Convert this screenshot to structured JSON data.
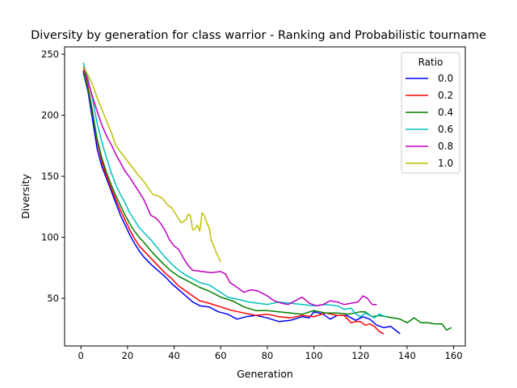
{
  "chart_data": {
    "type": "line",
    "title": "Diversity by generation for class warrior - Ranking and Probabilistic tourname",
    "xlabel": "Generation",
    "ylabel": "Diversity",
    "xlim": [
      -7,
      165
    ],
    "ylim": [
      11,
      256
    ],
    "xticks": [
      0,
      20,
      40,
      60,
      80,
      100,
      120,
      140,
      160
    ],
    "yticks": [
      50,
      100,
      150,
      200,
      250
    ],
    "grid": false,
    "legend": {
      "title": "Ratio",
      "placement": "top-right"
    },
    "series": [
      {
        "name": "0.0",
        "color": "#0000ff",
        "points": [
          [
            1,
            235
          ],
          [
            3,
            220
          ],
          [
            5,
            196
          ],
          [
            7,
            172
          ],
          [
            9,
            158
          ],
          [
            11,
            148
          ],
          [
            13,
            138
          ],
          [
            15,
            128
          ],
          [
            17,
            118
          ],
          [
            19,
            110
          ],
          [
            21,
            102
          ],
          [
            23,
            95
          ],
          [
            25,
            89
          ],
          [
            27,
            84
          ],
          [
            30,
            78
          ],
          [
            33,
            73
          ],
          [
            36,
            68
          ],
          [
            39,
            62
          ],
          [
            42,
            57
          ],
          [
            45,
            52
          ],
          [
            48,
            47
          ],
          [
            51,
            44
          ],
          [
            55,
            43
          ],
          [
            59,
            39
          ],
          [
            63,
            37
          ],
          [
            67,
            33
          ],
          [
            71,
            35
          ],
          [
            75,
            36
          ],
          [
            80,
            34
          ],
          [
            85,
            31
          ],
          [
            90,
            32
          ],
          [
            95,
            35
          ],
          [
            98,
            34
          ],
          [
            100,
            39
          ],
          [
            104,
            37
          ],
          [
            107,
            33
          ],
          [
            110,
            36
          ],
          [
            114,
            36
          ],
          [
            118,
            32
          ],
          [
            121,
            35
          ],
          [
            124,
            33
          ],
          [
            127,
            28
          ],
          [
            130,
            26
          ],
          [
            133,
            27
          ],
          [
            135,
            24
          ],
          [
            137,
            21
          ]
        ]
      },
      {
        "name": "0.2",
        "color": "#ff0000",
        "points": [
          [
            1,
            237
          ],
          [
            3,
            224
          ],
          [
            5,
            203
          ],
          [
            7,
            178
          ],
          [
            9,
            162
          ],
          [
            11,
            150
          ],
          [
            13,
            140
          ],
          [
            15,
            131
          ],
          [
            17,
            122
          ],
          [
            19,
            114
          ],
          [
            21,
            106
          ],
          [
            23,
            99
          ],
          [
            25,
            93
          ],
          [
            27,
            89
          ],
          [
            30,
            83
          ],
          [
            33,
            77
          ],
          [
            36,
            71
          ],
          [
            39,
            66
          ],
          [
            42,
            60
          ],
          [
            45,
            56
          ],
          [
            48,
            52
          ],
          [
            51,
            48
          ],
          [
            55,
            46
          ],
          [
            60,
            43
          ],
          [
            65,
            40
          ],
          [
            70,
            38
          ],
          [
            75,
            36
          ],
          [
            80,
            37
          ],
          [
            85,
            35
          ],
          [
            90,
            34
          ],
          [
            95,
            36
          ],
          [
            100,
            35
          ],
          [
            105,
            38
          ],
          [
            110,
            36
          ],
          [
            113,
            36
          ],
          [
            116,
            30
          ],
          [
            118,
            31
          ],
          [
            120,
            31
          ],
          [
            122,
            28
          ],
          [
            124,
            29
          ],
          [
            126,
            27
          ],
          [
            128,
            23
          ],
          [
            130,
            21
          ]
        ]
      },
      {
        "name": "0.4",
        "color": "#008000",
        "points": [
          [
            1,
            236
          ],
          [
            3,
            222
          ],
          [
            5,
            202
          ],
          [
            7,
            180
          ],
          [
            9,
            165
          ],
          [
            11,
            153
          ],
          [
            13,
            143
          ],
          [
            15,
            134
          ],
          [
            17,
            126
          ],
          [
            19,
            118
          ],
          [
            21,
            111
          ],
          [
            23,
            105
          ],
          [
            25,
            100
          ],
          [
            27,
            96
          ],
          [
            30,
            89
          ],
          [
            33,
            83
          ],
          [
            36,
            77
          ],
          [
            39,
            72
          ],
          [
            42,
            68
          ],
          [
            45,
            65
          ],
          [
            48,
            62
          ],
          [
            51,
            59
          ],
          [
            55,
            56
          ],
          [
            60,
            51
          ],
          [
            65,
            48
          ],
          [
            70,
            43
          ],
          [
            75,
            40
          ],
          [
            80,
            40
          ],
          [
            85,
            39
          ],
          [
            90,
            38
          ],
          [
            95,
            37
          ],
          [
            100,
            40
          ],
          [
            105,
            38
          ],
          [
            110,
            38
          ],
          [
            115,
            37
          ],
          [
            120,
            39
          ],
          [
            122,
            39
          ],
          [
            125,
            35
          ],
          [
            128,
            36
          ],
          [
            131,
            35
          ],
          [
            134,
            34
          ],
          [
            137,
            33
          ],
          [
            140,
            30
          ],
          [
            143,
            34
          ],
          [
            146,
            30
          ],
          [
            149,
            30
          ],
          [
            152,
            29
          ],
          [
            155,
            29
          ],
          [
            157,
            24
          ],
          [
            159,
            26
          ]
        ]
      },
      {
        "name": "0.6",
        "color": "#00bfbf",
        "points": [
          [
            1,
            243
          ],
          [
            3,
            230
          ],
          [
            5,
            213
          ],
          [
            7,
            193
          ],
          [
            9,
            178
          ],
          [
            11,
            165
          ],
          [
            13,
            153
          ],
          [
            15,
            143
          ],
          [
            17,
            135
          ],
          [
            19,
            128
          ],
          [
            21,
            120
          ],
          [
            23,
            114
          ],
          [
            25,
            108
          ],
          [
            27,
            104
          ],
          [
            30,
            98
          ],
          [
            33,
            91
          ],
          [
            36,
            84
          ],
          [
            39,
            78
          ],
          [
            42,
            73
          ],
          [
            45,
            69
          ],
          [
            48,
            66
          ],
          [
            51,
            63
          ],
          [
            55,
            61
          ],
          [
            60,
            55
          ],
          [
            63,
            51
          ],
          [
            68,
            49
          ],
          [
            72,
            47
          ],
          [
            76,
            46
          ],
          [
            80,
            45
          ],
          [
            85,
            47
          ],
          [
            90,
            46
          ],
          [
            95,
            45
          ],
          [
            100,
            44
          ],
          [
            105,
            45
          ],
          [
            110,
            44
          ],
          [
            113,
            41
          ],
          [
            116,
            42
          ],
          [
            118,
            37
          ],
          [
            120,
            35
          ],
          [
            122,
            38
          ],
          [
            124,
            36
          ],
          [
            126,
            34
          ],
          [
            128,
            37
          ],
          [
            131,
            35
          ]
        ]
      },
      {
        "name": "0.8",
        "color": "#bf00bf",
        "points": [
          [
            1,
            240
          ],
          [
            3,
            228
          ],
          [
            5,
            215
          ],
          [
            7,
            203
          ],
          [
            9,
            192
          ],
          [
            11,
            183
          ],
          [
            13,
            176
          ],
          [
            15,
            168
          ],
          [
            17,
            161
          ],
          [
            19,
            154
          ],
          [
            21,
            149
          ],
          [
            23,
            143
          ],
          [
            25,
            137
          ],
          [
            27,
            131
          ],
          [
            30,
            118
          ],
          [
            32,
            116
          ],
          [
            34,
            112
          ],
          [
            36,
            106
          ],
          [
            38,
            98
          ],
          [
            40,
            93
          ],
          [
            42,
            90
          ],
          [
            44,
            83
          ],
          [
            46,
            77
          ],
          [
            48,
            73
          ],
          [
            52,
            72
          ],
          [
            56,
            71
          ],
          [
            60,
            72
          ],
          [
            62,
            70
          ],
          [
            64,
            63
          ],
          [
            67,
            59
          ],
          [
            70,
            55
          ],
          [
            73,
            57
          ],
          [
            76,
            56
          ],
          [
            80,
            52
          ],
          [
            83,
            48
          ],
          [
            86,
            46
          ],
          [
            89,
            45
          ],
          [
            92,
            48
          ],
          [
            95,
            51
          ],
          [
            98,
            46
          ],
          [
            101,
            44
          ],
          [
            104,
            45
          ],
          [
            107,
            48
          ],
          [
            110,
            47
          ],
          [
            113,
            45
          ],
          [
            116,
            46
          ],
          [
            119,
            47
          ],
          [
            121,
            52
          ],
          [
            123,
            50
          ],
          [
            125,
            45
          ],
          [
            127,
            45
          ]
        ]
      },
      {
        "name": "1.0",
        "color": "#bfbf00",
        "points": [
          [
            1,
            240
          ],
          [
            3,
            233
          ],
          [
            5,
            225
          ],
          [
            7,
            214
          ],
          [
            9,
            205
          ],
          [
            11,
            195
          ],
          [
            13,
            186
          ],
          [
            15,
            175
          ],
          [
            17,
            170
          ],
          [
            19,
            165
          ],
          [
            21,
            160
          ],
          [
            23,
            155
          ],
          [
            25,
            150
          ],
          [
            27,
            146
          ],
          [
            29,
            140
          ],
          [
            31,
            135
          ],
          [
            33,
            134
          ],
          [
            35,
            132
          ],
          [
            37,
            127
          ],
          [
            39,
            124
          ],
          [
            41,
            118
          ],
          [
            43,
            112
          ],
          [
            45,
            114
          ],
          [
            46,
            119
          ],
          [
            47,
            118
          ],
          [
            48,
            106
          ],
          [
            49,
            107
          ],
          [
            50,
            110
          ],
          [
            51,
            105
          ],
          [
            52,
            120
          ],
          [
            53,
            118
          ],
          [
            54,
            112
          ],
          [
            55,
            108
          ],
          [
            56,
            97
          ],
          [
            57,
            93
          ],
          [
            58,
            88
          ],
          [
            59,
            84
          ],
          [
            60,
            80
          ]
        ]
      }
    ]
  }
}
